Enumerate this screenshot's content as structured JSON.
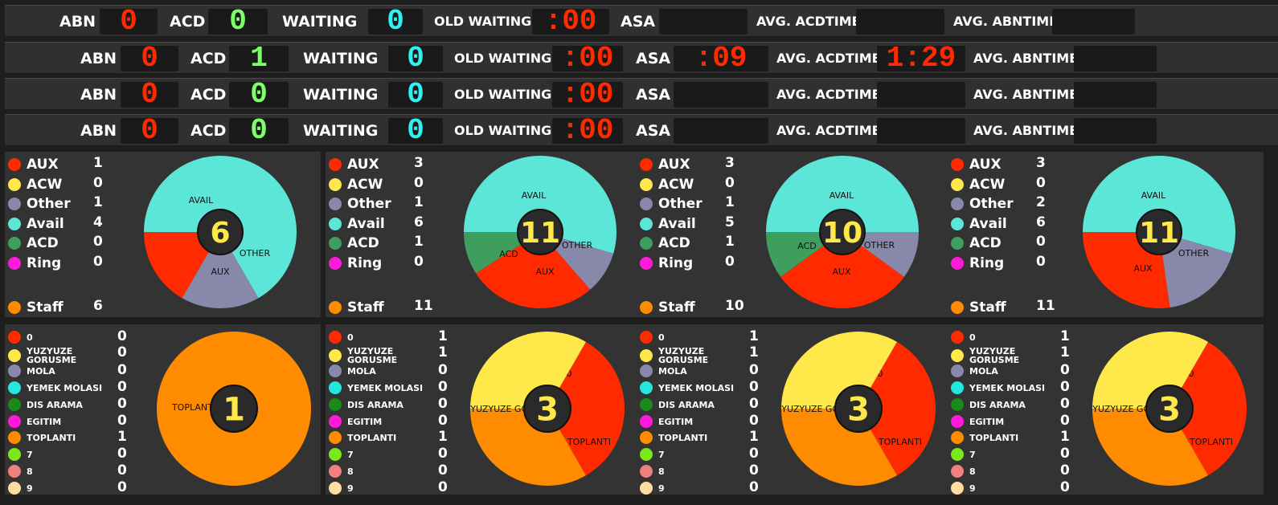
{
  "top_rows": [
    {
      "abn_label": "ABN",
      "abn": "0",
      "acd_label": "ACD",
      "acd": "0",
      "waiting_label": "WAITING",
      "waiting": "0",
      "old_waiting_label": "OLD WAITING",
      "old_waiting": ":00",
      "asa_label": "ASA",
      "asa": "",
      "avg_acdtime_label": "AVG. ACDTIME",
      "avg_acdtime": "",
      "avg_abntime_label": "AVG. ABNTIME",
      "avg_abntime": ""
    },
    {
      "abn_label": "ABN",
      "abn": "0",
      "acd_label": "ACD",
      "acd": "1",
      "waiting_label": "WAITING",
      "waiting": "0",
      "old_waiting_label": "OLD WAITING",
      "old_waiting": ":00",
      "asa_label": "ASA",
      "asa": ":09",
      "avg_acdtime_label": "AVG. ACDTIME",
      "avg_acdtime": "1:29",
      "avg_abntime_label": "AVG. ABNTIME",
      "avg_abntime": ""
    },
    {
      "abn_label": "ABN",
      "abn": "0",
      "acd_label": "ACD",
      "acd": "0",
      "waiting_label": "WAITING",
      "waiting": "0",
      "old_waiting_label": "OLD WAITING",
      "old_waiting": ":00",
      "asa_label": "ASA",
      "asa": "",
      "avg_acdtime_label": "AVG. ACDTIME",
      "avg_acdtime": "",
      "avg_abntime_label": "AVG. ABNTIME",
      "avg_abntime": ""
    },
    {
      "abn_label": "ABN",
      "abn": "0",
      "acd_label": "ACD",
      "acd": "0",
      "waiting_label": "WAITING",
      "waiting": "0",
      "old_waiting_label": "OLD WAITING",
      "old_waiting": ":00",
      "asa_label": "ASA",
      "asa": "",
      "avg_acdtime_label": "AVG. ACDTIME",
      "avg_acdtime": "",
      "avg_abntime_label": "AVG. ABNTIME",
      "avg_abntime": ""
    }
  ],
  "colors": {
    "aux": "#ff2a00",
    "acw": "#ffe84a",
    "other": "#8888aa",
    "avail": "#5ce6d8",
    "acd": "#3e9e5e",
    "ring": "#ff1ad9",
    "staff": "#ff8c00",
    "r0": "#ff2a00",
    "yuzyuze": "#ffe84a",
    "mola": "#8888aa",
    "yemek": "#22e8e0",
    "dis_arama": "#1a8a1a",
    "egitim": "#ff1ad9",
    "toplanti": "#ff8c00",
    "r7": "#7ae81a",
    "r8": "#f08080",
    "r9": "#ffdca0"
  },
  "state_panels": [
    {
      "legend": [
        {
          "name": "AUX",
          "value": "1"
        },
        {
          "name": "ACW",
          "value": "0"
        },
        {
          "name": "Other",
          "value": "1"
        },
        {
          "name": "Avail",
          "value": "4"
        },
        {
          "name": "ACD",
          "value": "0"
        },
        {
          "name": "Ring",
          "value": "0"
        }
      ],
      "staff": {
        "name": "Staff",
        "value": "6"
      },
      "total": "6",
      "chart_data": {
        "type": "pie",
        "labels": [
          "AVAIL",
          "OTHER",
          "AUX"
        ],
        "values": [
          4,
          1,
          1
        ]
      }
    },
    {
      "legend": [
        {
          "name": "AUX",
          "value": "3"
        },
        {
          "name": "ACW",
          "value": "0"
        },
        {
          "name": "Other",
          "value": "1"
        },
        {
          "name": "Avail",
          "value": "6"
        },
        {
          "name": "ACD",
          "value": "1"
        },
        {
          "name": "Ring",
          "value": "0"
        }
      ],
      "staff": {
        "name": "Staff",
        "value": "11"
      },
      "total": "11",
      "chart_data": {
        "type": "pie",
        "labels": [
          "AVAIL",
          "OTHER",
          "AUX",
          "ACD"
        ],
        "values": [
          6,
          1,
          3,
          1
        ]
      }
    },
    {
      "legend": [
        {
          "name": "AUX",
          "value": "3"
        },
        {
          "name": "ACW",
          "value": "0"
        },
        {
          "name": "Other",
          "value": "1"
        },
        {
          "name": "Avail",
          "value": "5"
        },
        {
          "name": "ACD",
          "value": "1"
        },
        {
          "name": "Ring",
          "value": "0"
        }
      ],
      "staff": {
        "name": "Staff",
        "value": "10"
      },
      "total": "10",
      "chart_data": {
        "type": "pie",
        "labels": [
          "AVAIL",
          "OTHER",
          "AUX",
          "ACD"
        ],
        "values": [
          5,
          1,
          3,
          1
        ]
      }
    },
    {
      "legend": [
        {
          "name": "AUX",
          "value": "3"
        },
        {
          "name": "ACW",
          "value": "0"
        },
        {
          "name": "Other",
          "value": "2"
        },
        {
          "name": "Avail",
          "value": "6"
        },
        {
          "name": "ACD",
          "value": "0"
        },
        {
          "name": "Ring",
          "value": "0"
        }
      ],
      "staff": {
        "name": "Staff",
        "value": "11"
      },
      "total": "11",
      "chart_data": {
        "type": "pie",
        "labels": [
          "AVAIL",
          "OTHER",
          "AUX"
        ],
        "values": [
          6,
          2,
          3
        ]
      }
    }
  ],
  "reason_panels": [
    {
      "legend": [
        {
          "name": "0",
          "value": "0"
        },
        {
          "name": "YUZYUZE GORUSME",
          "value": "0"
        },
        {
          "name": "MOLA",
          "value": "0"
        },
        {
          "name": "YEMEK MOLASI",
          "value": "0"
        },
        {
          "name": "DIS ARAMA",
          "value": "0"
        },
        {
          "name": "EGITIM",
          "value": "0"
        },
        {
          "name": "TOPLANTI",
          "value": "1"
        },
        {
          "name": "7",
          "value": "0"
        },
        {
          "name": "8",
          "value": "0"
        },
        {
          "name": "9",
          "value": "0"
        }
      ],
      "total": "1",
      "chart_data": {
        "type": "pie",
        "labels": [
          "TOPLANTI"
        ],
        "values": [
          1
        ]
      }
    },
    {
      "legend": [
        {
          "name": "0",
          "value": "1"
        },
        {
          "name": "YUZYUZE GORUSME",
          "value": "1"
        },
        {
          "name": "MOLA",
          "value": "0"
        },
        {
          "name": "YEMEK MOLASI",
          "value": "0"
        },
        {
          "name": "DIS ARAMA",
          "value": "0"
        },
        {
          "name": "EGITIM",
          "value": "0"
        },
        {
          "name": "TOPLANTI",
          "value": "1"
        },
        {
          "name": "7",
          "value": "0"
        },
        {
          "name": "8",
          "value": "0"
        },
        {
          "name": "9",
          "value": "0"
        }
      ],
      "total": "3",
      "chart_data": {
        "type": "pie",
        "labels": [
          "0",
          "TOPLANTI",
          "YUZYUZE GOR"
        ],
        "values": [
          1,
          1,
          1
        ]
      }
    },
    {
      "legend": [
        {
          "name": "0",
          "value": "1"
        },
        {
          "name": "YUZYUZE GORUSME",
          "value": "1"
        },
        {
          "name": "MOLA",
          "value": "0"
        },
        {
          "name": "YEMEK MOLASI",
          "value": "0"
        },
        {
          "name": "DIS ARAMA",
          "value": "0"
        },
        {
          "name": "EGITIM",
          "value": "0"
        },
        {
          "name": "TOPLANTI",
          "value": "1"
        },
        {
          "name": "7",
          "value": "0"
        },
        {
          "name": "8",
          "value": "0"
        },
        {
          "name": "9",
          "value": "0"
        }
      ],
      "total": "3",
      "chart_data": {
        "type": "pie",
        "labels": [
          "0",
          "TOPLANTI",
          "YUZYUZE GOR"
        ],
        "values": [
          1,
          1,
          1
        ]
      }
    },
    {
      "legend": [
        {
          "name": "0",
          "value": "1"
        },
        {
          "name": "YUZYUZE GORUSME",
          "value": "1"
        },
        {
          "name": "MOLA",
          "value": "0"
        },
        {
          "name": "YEMEK MOLASI",
          "value": "0"
        },
        {
          "name": "DIS ARAMA",
          "value": "0"
        },
        {
          "name": "EGITIM",
          "value": "0"
        },
        {
          "name": "TOPLANTI",
          "value": "1"
        },
        {
          "name": "7",
          "value": "0"
        },
        {
          "name": "8",
          "value": "0"
        },
        {
          "name": "9",
          "value": "0"
        }
      ],
      "total": "3",
      "chart_data": {
        "type": "pie",
        "labels": [
          "0",
          "TOPLANTI",
          "YUZYUZE GOR"
        ],
        "values": [
          1,
          1,
          1
        ]
      }
    }
  ]
}
